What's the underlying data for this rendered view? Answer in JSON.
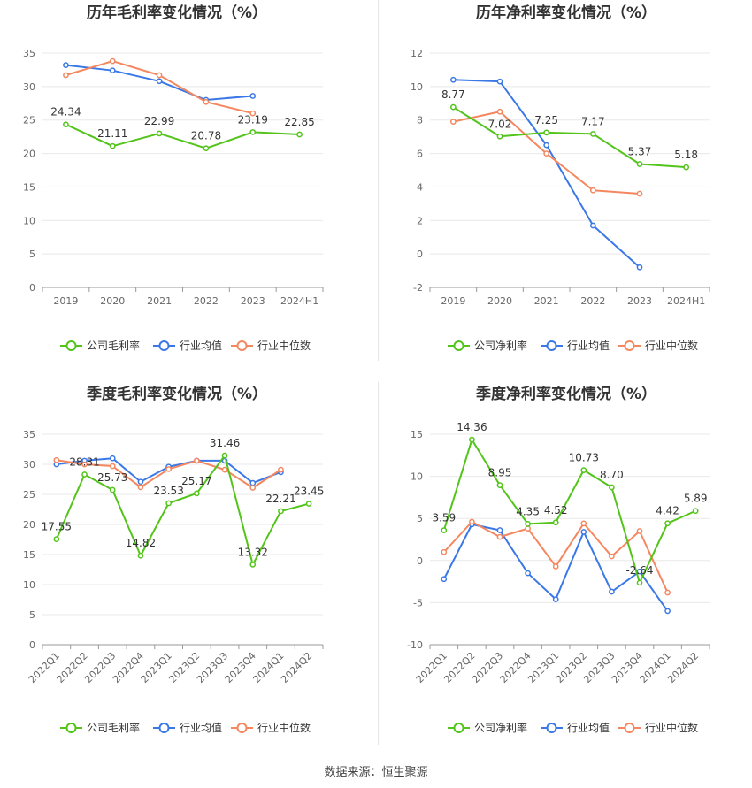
{
  "source_text": "数据来源：恒生聚源",
  "colors": {
    "company": "#52c41a",
    "industry_avg": "#3b78e7",
    "industry_median": "#f4875f",
    "axis": "#999999",
    "grid": "#e8e8e8",
    "label": "#333333",
    "tick": "#666666"
  },
  "chart_data": [
    {
      "type": "line",
      "title": "历年毛利率变化情况（%）",
      "categories": [
        "2019",
        "2020",
        "2021",
        "2022",
        "2023",
        "2024H1"
      ],
      "ylim": [
        0,
        35
      ],
      "yticks": [
        0,
        5,
        10,
        15,
        20,
        25,
        30,
        35
      ],
      "rotate_x": false,
      "label_series": 0,
      "series": [
        {
          "name": "公司毛利率",
          "values": [
            24.34,
            21.11,
            22.99,
            20.78,
            23.19,
            22.85
          ],
          "labels": [
            "24.34",
            "21.11",
            "22.99",
            "20.78",
            "23.19",
            "22.85"
          ]
        },
        {
          "name": "行业均值",
          "values": [
            33.2,
            32.4,
            30.8,
            28.0,
            28.6,
            null
          ]
        },
        {
          "name": "行业中位数",
          "values": [
            31.7,
            33.8,
            31.7,
            27.7,
            26.0,
            null
          ]
        }
      ]
    },
    {
      "type": "line",
      "title": "历年净利率变化情况（%）",
      "categories": [
        "2019",
        "2020",
        "2021",
        "2022",
        "2023",
        "2024H1"
      ],
      "ylim": [
        -2,
        12
      ],
      "yticks": [
        -2,
        0,
        2,
        4,
        6,
        8,
        10,
        12
      ],
      "rotate_x": false,
      "label_series": 0,
      "series": [
        {
          "name": "公司净利率",
          "values": [
            8.77,
            7.02,
            7.25,
            7.17,
            5.37,
            5.18
          ],
          "labels": [
            "8.77",
            "7.02",
            "7.25",
            "7.17",
            "5.37",
            "5.18"
          ]
        },
        {
          "name": "行业均值",
          "values": [
            10.4,
            10.3,
            6.5,
            1.7,
            -0.8,
            null
          ]
        },
        {
          "name": "行业中位数",
          "values": [
            7.9,
            8.5,
            6.0,
            3.8,
            3.6,
            null
          ]
        }
      ]
    },
    {
      "type": "line",
      "title": "季度毛利率变化情况（%）",
      "categories": [
        "2022Q1",
        "2022Q2",
        "2022Q3",
        "2022Q4",
        "2023Q1",
        "2023Q2",
        "2023Q3",
        "2023Q4",
        "2024Q1",
        "2024Q2"
      ],
      "ylim": [
        0,
        35
      ],
      "yticks": [
        0,
        5,
        10,
        15,
        20,
        25,
        30,
        35
      ],
      "rotate_x": true,
      "label_series": 0,
      "series": [
        {
          "name": "公司毛利率",
          "values": [
            17.55,
            28.31,
            25.73,
            14.82,
            23.53,
            25.17,
            31.46,
            13.32,
            22.21,
            23.45
          ],
          "labels": [
            "17.55",
            "28.31",
            "25.73",
            "14.82",
            "23.53",
            "25.17",
            "31.46",
            "13.32",
            "22.21",
            "23.45"
          ]
        },
        {
          "name": "行业均值",
          "values": [
            30.0,
            30.6,
            31.0,
            27.1,
            29.6,
            30.6,
            30.6,
            26.9,
            28.7,
            null
          ]
        },
        {
          "name": "行业中位数",
          "values": [
            30.7,
            30.0,
            29.7,
            26.2,
            29.2,
            30.6,
            29.1,
            26.1,
            29.1,
            null
          ]
        }
      ]
    },
    {
      "type": "line",
      "title": "季度净利率变化情况（%）",
      "categories": [
        "2022Q1",
        "2022Q2",
        "2022Q3",
        "2022Q4",
        "2023Q1",
        "2023Q2",
        "2023Q3",
        "2023Q4",
        "2024Q1",
        "2024Q2"
      ],
      "ylim": [
        -10,
        15
      ],
      "yticks": [
        -10,
        -5,
        0,
        5,
        10,
        15
      ],
      "rotate_x": true,
      "label_series": 0,
      "series": [
        {
          "name": "公司净利率",
          "values": [
            3.59,
            14.36,
            8.95,
            4.35,
            4.52,
            10.73,
            8.7,
            -2.64,
            4.42,
            5.89
          ],
          "labels": [
            "3.59",
            "14.36",
            "8.95",
            "4.35",
            "4.52",
            "10.73",
            "8.70",
            "-2.64",
            "4.42",
            "5.89"
          ]
        },
        {
          "name": "行业均值",
          "values": [
            -2.2,
            4.3,
            3.6,
            -1.5,
            -4.6,
            3.4,
            -3.7,
            -1.3,
            -6.0,
            null
          ]
        },
        {
          "name": "行业中位数",
          "values": [
            1.0,
            4.6,
            2.8,
            3.8,
            -0.7,
            4.4,
            0.5,
            3.5,
            -3.8,
            null
          ]
        }
      ]
    }
  ]
}
